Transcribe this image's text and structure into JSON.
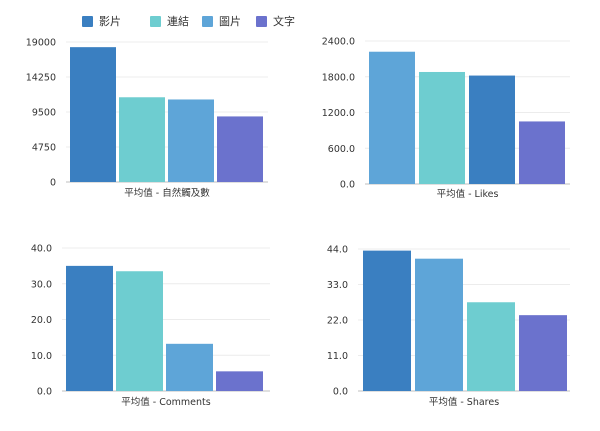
{
  "legend": [
    {
      "label": "影片",
      "color": "#3a7fc1"
    },
    {
      "label": "連結",
      "color": "#6ecdd0"
    },
    {
      "label": "圖片",
      "color": "#5ea5d8"
    },
    {
      "label": "文字",
      "color": "#6b72cd"
    }
  ],
  "chart_data": [
    {
      "type": "bar",
      "categories": [
        "平均值 - 自然觸及數"
      ],
      "series": [
        {
          "name": "影片",
          "values": [
            18300
          ]
        },
        {
          "name": "連結",
          "values": [
            11500
          ]
        },
        {
          "name": "圖片",
          "values": [
            11200
          ]
        },
        {
          "name": "文字",
          "values": [
            8900
          ]
        }
      ],
      "yticks": [
        "0",
        "4750",
        "9500",
        "14250",
        "19000"
      ],
      "ylim": [
        0,
        19000
      ]
    },
    {
      "type": "bar",
      "categories": [
        "平均值 - Likes"
      ],
      "series": [
        {
          "name": "圖片",
          "values": [
            2220
          ]
        },
        {
          "name": "連結",
          "values": [
            1880
          ]
        },
        {
          "name": "影片",
          "values": [
            1820
          ]
        },
        {
          "name": "文字",
          "values": [
            1050
          ]
        }
      ],
      "yticks": [
        "0.0",
        "600.0",
        "1200.0",
        "1800.0",
        "2400.0"
      ],
      "ylim": [
        0,
        2400
      ]
    },
    {
      "type": "bar",
      "categories": [
        "平均值 - Comments"
      ],
      "series": [
        {
          "name": "影片",
          "values": [
            35.0
          ]
        },
        {
          "name": "連結",
          "values": [
            33.5
          ]
        },
        {
          "name": "圖片",
          "values": [
            13.2
          ]
        },
        {
          "name": "文字",
          "values": [
            5.5
          ]
        }
      ],
      "yticks": [
        "0.0",
        "10.0",
        "20.0",
        "30.0",
        "40.0"
      ],
      "ylim": [
        0,
        40
      ]
    },
    {
      "type": "bar",
      "categories": [
        "平均值 - Shares"
      ],
      "series": [
        {
          "name": "影片",
          "values": [
            43.5
          ]
        },
        {
          "name": "圖片",
          "values": [
            41.0
          ]
        },
        {
          "name": "連結",
          "values": [
            27.5
          ]
        },
        {
          "name": "文字",
          "values": [
            23.5
          ]
        }
      ],
      "yticks": [
        "0.0",
        "11.0",
        "22.0",
        "33.0",
        "44.0"
      ],
      "ylim": [
        0,
        44
      ]
    }
  ]
}
